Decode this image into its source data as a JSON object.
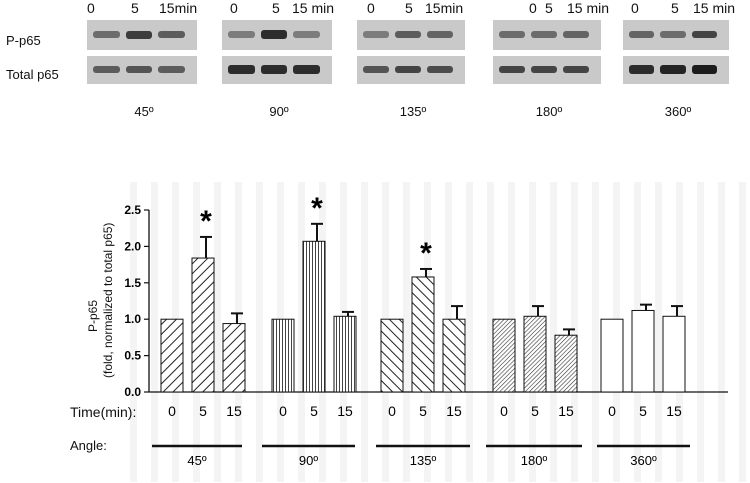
{
  "blot": {
    "row_labels": [
      "P-p65",
      "Total p65"
    ],
    "panels": [
      {
        "times": [
          "0",
          "5",
          "15min"
        ],
        "angle": "45º"
      },
      {
        "times": [
          "0",
          "5",
          "15 min"
        ],
        "angle": "90º"
      },
      {
        "times": [
          "0",
          "5",
          "15min"
        ],
        "angle": "135º"
      },
      {
        "times": [
          "0",
          "5",
          "15 min"
        ],
        "angle": "180º"
      },
      {
        "times": [
          "0",
          "5",
          "15 min"
        ],
        "angle": "360º"
      }
    ]
  },
  "chart_data": {
    "type": "bar",
    "ylabel": "P-p65",
    "ylabel2": "(fold, normalized to total p65)",
    "ylim": [
      0,
      2.5
    ],
    "yticks": [
      "0.0",
      "0.5",
      "1.0",
      "1.5",
      "2.0",
      "2.5"
    ],
    "time_row_label": "Time(min):",
    "angle_row_label": "Angle:",
    "groups": [
      {
        "angle": "45º",
        "times": [
          "0",
          "5",
          "15"
        ],
        "values": [
          1.0,
          1.84,
          0.94
        ],
        "errors": [
          0,
          0.29,
          0.14
        ],
        "significant": [
          false,
          true,
          false
        ],
        "pattern": "diag-right"
      },
      {
        "angle": "90º",
        "times": [
          "0",
          "5",
          "15"
        ],
        "values": [
          1.0,
          2.07,
          1.04
        ],
        "errors": [
          0,
          0.24,
          0.06
        ],
        "significant": [
          false,
          true,
          false
        ],
        "pattern": "vertical"
      },
      {
        "angle": "135º",
        "times": [
          "0",
          "5",
          "15"
        ],
        "values": [
          1.0,
          1.58,
          1.0
        ],
        "errors": [
          0,
          0.11,
          0.18
        ],
        "significant": [
          false,
          true,
          false
        ],
        "pattern": "diag-left"
      },
      {
        "angle": "180º",
        "times": [
          "0",
          "5",
          "15"
        ],
        "values": [
          1.0,
          1.04,
          0.78
        ],
        "errors": [
          0,
          0.14,
          0.08
        ],
        "significant": [
          false,
          false,
          false
        ],
        "pattern": "dense"
      },
      {
        "angle": "360º",
        "times": [
          "0",
          "5",
          "15"
        ],
        "values": [
          1.0,
          1.12,
          1.04
        ],
        "errors": [
          0,
          0.08,
          0.14
        ],
        "significant": [
          false,
          false,
          false
        ],
        "pattern": "none"
      }
    ],
    "significance_marker": "*",
    "grid": false,
    "legend": "none"
  }
}
